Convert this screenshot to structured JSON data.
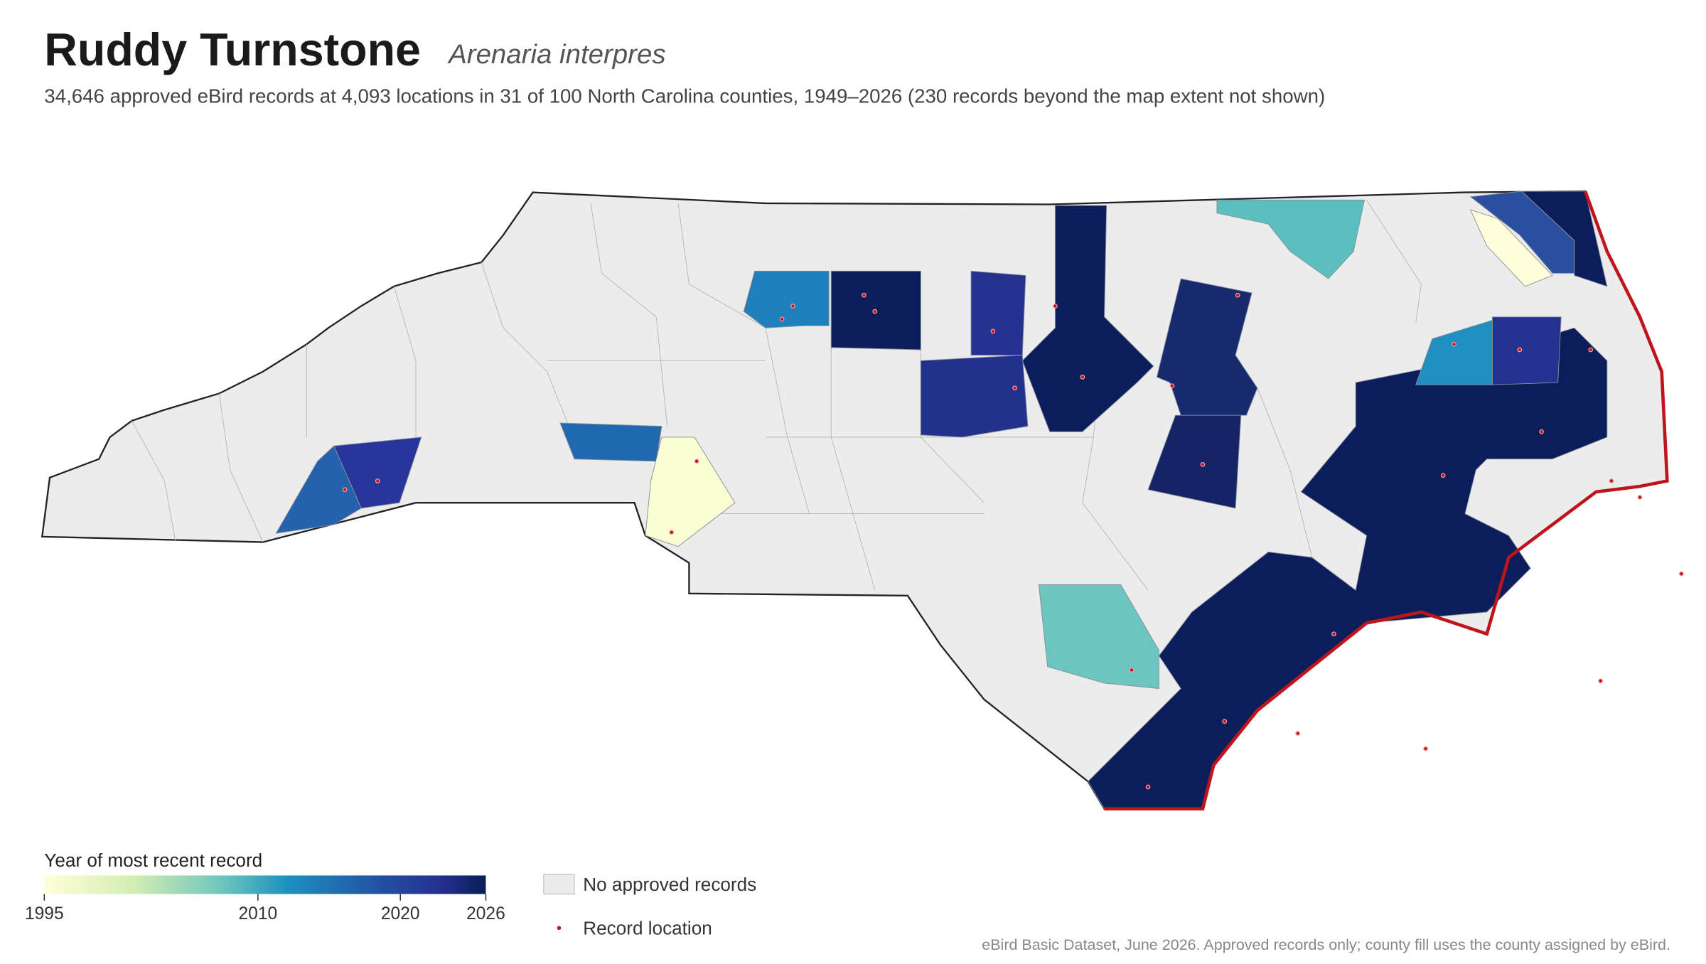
{
  "header": {
    "title": "Ruddy Turnstone",
    "scientific_name": "Arenaria interpres",
    "subtitle": "34,646 approved eBird records at 4,093 locations in 31 of 100 North Carolina counties, 1949–2026 (230 records beyond the map extent not shown)"
  },
  "legend": {
    "title": "Year of most recent record",
    "range": [
      1995,
      2026
    ],
    "ticks": [
      1995,
      2010,
      2020,
      2026
    ],
    "no_records": "No approved records",
    "record_location": "Record location"
  },
  "footer": "eBird Basic Dataset, June 2026. Approved records only; county fill uses the county assigned by eBird."
}
